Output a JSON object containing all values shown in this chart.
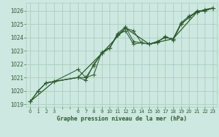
{
  "title": "Graphe pression niveau de la mer (hPa)",
  "background_color": "#cce8e0",
  "grid_color": "#aaccbb",
  "line_color": "#2d5a2d",
  "plot_bg": "#cce8e0",
  "xlim": [
    -0.5,
    23.5
  ],
  "ylim": [
    1018.8,
    1026.6
  ],
  "yticks": [
    1019,
    1020,
    1021,
    1022,
    1023,
    1024,
    1025,
    1026
  ],
  "xtick_positions": [
    0,
    1,
    2,
    3,
    6,
    7,
    8,
    9,
    10,
    11,
    12,
    13,
    14,
    15,
    16,
    17,
    18,
    19,
    20,
    21,
    22,
    23
  ],
  "xtick_labels": [
    "0",
    "1",
    "2",
    "3",
    "",
    "",
    "6",
    "7",
    "8",
    "9",
    "10",
    "11",
    "12",
    "13",
    "14",
    "15",
    "16",
    "17",
    "18",
    "19",
    "20",
    "21",
    "22",
    "23"
  ],
  "all_xticks": [
    0,
    1,
    2,
    3,
    4,
    5,
    6,
    7,
    8,
    9,
    10,
    11,
    12,
    13,
    14,
    15,
    16,
    17,
    18,
    19,
    20,
    21,
    22,
    23
  ],
  "series1_x": [
    0,
    1,
    2,
    3,
    6,
    7,
    8,
    9,
    10,
    11,
    12,
    13,
    14,
    15,
    16,
    17,
    18,
    19,
    20,
    21,
    22,
    23
  ],
  "series1_y": [
    1019.2,
    1020.0,
    1020.6,
    1020.7,
    1021.0,
    1021.0,
    1021.9,
    1022.8,
    1023.2,
    1024.2,
    1024.7,
    1024.5,
    1023.6,
    1023.5,
    1023.6,
    1024.1,
    1023.8,
    1025.0,
    1025.5,
    1026.0,
    1026.0,
    1026.2
  ],
  "series2_x": [
    0,
    1,
    2,
    3,
    6,
    7,
    8,
    9,
    10,
    11,
    12,
    13,
    14,
    15,
    16,
    17,
    18,
    19,
    20,
    21,
    22,
    23
  ],
  "series2_y": [
    1019.2,
    1020.0,
    1020.6,
    1020.7,
    1021.6,
    1021.0,
    1021.2,
    1022.9,
    1023.2,
    1024.3,
    1024.8,
    1023.7,
    1023.6,
    1023.5,
    1023.7,
    1024.0,
    1023.9,
    1025.1,
    1025.6,
    1025.9,
    1026.1,
    1026.2
  ],
  "series3_x": [
    0,
    1,
    2,
    3,
    6,
    7,
    8,
    9,
    10,
    11,
    12,
    13,
    14,
    15,
    16,
    17,
    18,
    19,
    20,
    21,
    22,
    23
  ],
  "series3_y": [
    1019.2,
    1020.0,
    1020.6,
    1020.7,
    1021.0,
    1020.8,
    1022.0,
    1022.8,
    1023.2,
    1024.2,
    1024.5,
    1023.5,
    1023.6,
    1023.5,
    1023.7,
    1024.0,
    1023.9,
    1025.0,
    1025.5,
    1025.9,
    1026.0,
    1026.2
  ],
  "series4_x": [
    0,
    3,
    6,
    9,
    12,
    15,
    18,
    21,
    23
  ],
  "series4_y": [
    1019.2,
    1020.7,
    1021.0,
    1022.8,
    1024.7,
    1023.5,
    1023.9,
    1025.9,
    1026.2
  ],
  "markersize": 2.5,
  "linewidth": 0.8,
  "tick_fontsize": 5.5,
  "label_fontsize": 6.0
}
